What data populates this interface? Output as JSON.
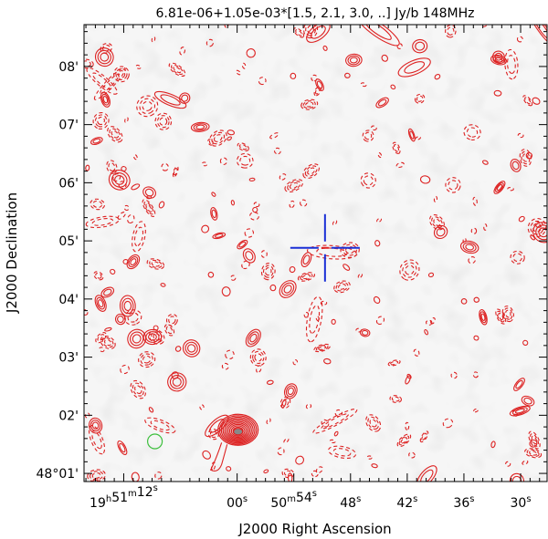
{
  "chart_data": {
    "type": "contour",
    "title": "6.81e-06+1.05e-03*[1.5, 2.1, 3.0, ..] Jy/b  148MHz",
    "xlabel": "J2000 Right Ascension",
    "ylabel": "J2000 Declination",
    "x_ticks": [
      {
        "label": "19h51m12s",
        "parts": [
          "19",
          "h",
          "51",
          "m",
          "12",
          "s"
        ],
        "ra_sec": 5472
      },
      {
        "label": "00s",
        "parts": [
          "00",
          "s"
        ],
        "ra_sec": 5460
      },
      {
        "label": "50m54s",
        "parts": [
          "50",
          "m",
          "54",
          "s"
        ],
        "ra_sec": 5454
      },
      {
        "label": "48s",
        "parts": [
          "48",
          "s"
        ],
        "ra_sec": 5448
      },
      {
        "label": "42s",
        "parts": [
          "42",
          "s"
        ],
        "ra_sec": 5442
      },
      {
        "label": "36s",
        "parts": [
          "36",
          "s"
        ],
        "ra_sec": 5436
      },
      {
        "label": "30s",
        "parts": [
          "30",
          "s"
        ],
        "ra_sec": 5430
      }
    ],
    "y_ticks": [
      {
        "label": "48°01'",
        "arcmin": 1
      },
      {
        "label": "02'",
        "arcmin": 2
      },
      {
        "label": "03'",
        "arcmin": 3
      },
      {
        "label": "04'",
        "arcmin": 4
      },
      {
        "label": "05'",
        "arcmin": 5
      },
      {
        "label": "06'",
        "arcmin": 6
      },
      {
        "label": "07'",
        "arcmin": 7
      },
      {
        "label": "08'",
        "arcmin": 8
      }
    ],
    "ra_range_sec": [
      5476.2,
      5427.2
    ],
    "dec_range_arcmin": [
      0.86,
      8.72
    ],
    "background": "light grey noise",
    "contour_color": "#dd2222",
    "negative_contours": "dashed",
    "bright_source": {
      "ra_sec": 5459.9,
      "dec_arcmin": 1.75
    },
    "target_marker": {
      "ra_sec": 5450.7,
      "dec_arcmin": 4.88,
      "color": "#1a2fd6"
    },
    "beam": {
      "ra_sec": 5468.7,
      "dec_arcmin": 1.55,
      "color": "#3cbf3c"
    }
  }
}
